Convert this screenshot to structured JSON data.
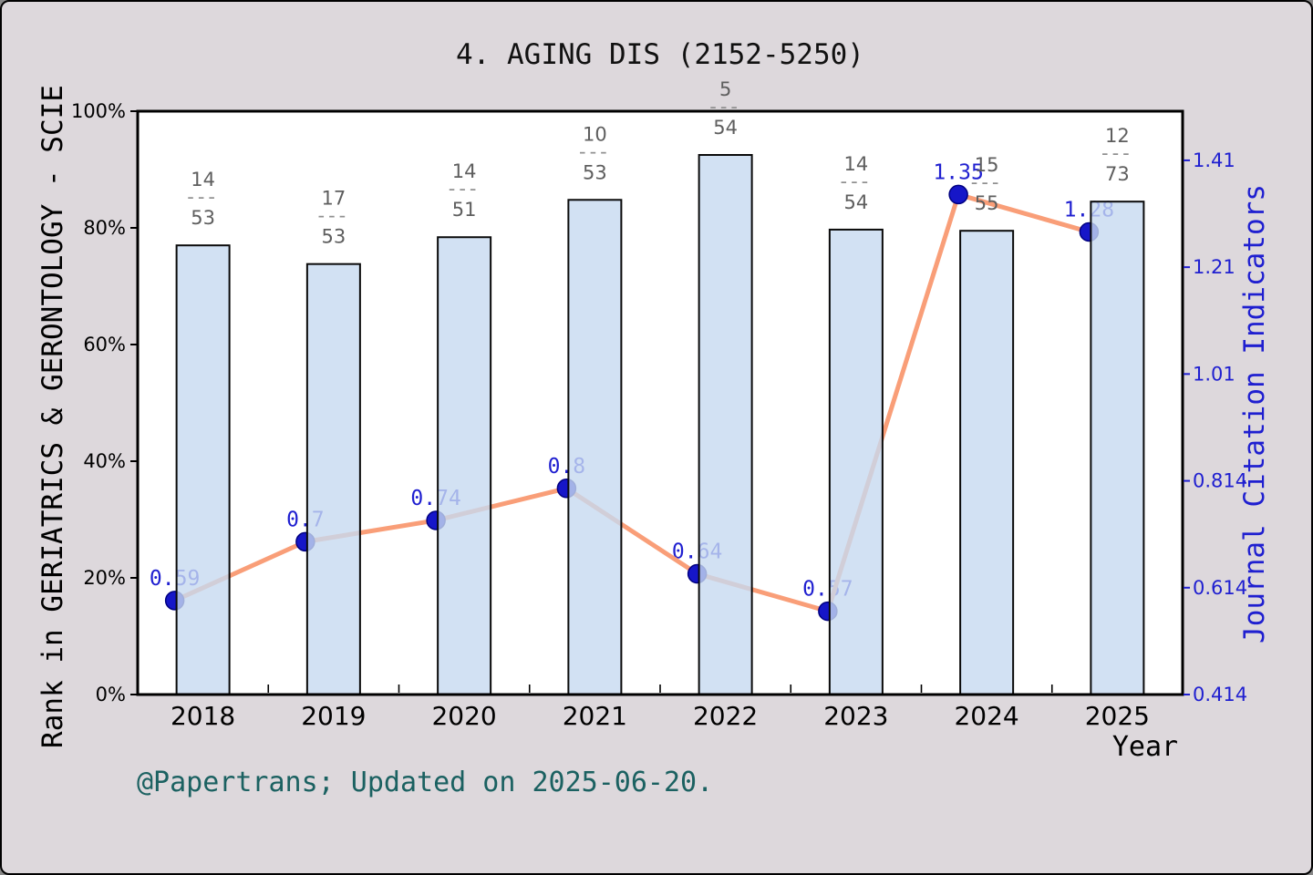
{
  "chart_data": {
    "type": "bar+line",
    "title": "4. AGING DIS (2152-5250)",
    "xlabel": "Year",
    "ylabel_left": "Rank in GERIATRICS & GERONTOLOGY - SCIE",
    "ylabel_right": "Journal Citation Indicators",
    "categories": [
      "2018",
      "2019",
      "2020",
      "2021",
      "2022",
      "2023",
      "2024",
      "2025"
    ],
    "bars": {
      "name": "rank-percentile-bars",
      "values_percent": [
        77.0,
        73.8,
        78.4,
        84.8,
        92.5,
        79.7,
        79.5,
        84.5
      ],
      "fractions": [
        {
          "num": "14",
          "den": "53"
        },
        {
          "num": "17",
          "den": "53"
        },
        {
          "num": "14",
          "den": "51"
        },
        {
          "num": "10",
          "den": "53"
        },
        {
          "num": "5",
          "den": "54"
        },
        {
          "num": "14",
          "den": "54"
        },
        {
          "num": "15",
          "den": "55"
        },
        {
          "num": "12",
          "den": "73"
        }
      ],
      "fraction_dash": "---"
    },
    "line": {
      "name": "journal-citation-indicators-line",
      "values": [
        0.59,
        0.7,
        0.74,
        0.8,
        0.64,
        0.57,
        1.35,
        1.28
      ],
      "labels": [
        "0.59",
        "0.7",
        "0.74",
        "0.8",
        "0.64",
        "0.57",
        "1.35",
        "1.28"
      ]
    },
    "left_axis": {
      "tick_labels": [
        "0%",
        "20%",
        "40%",
        "60%",
        "80%",
        "100%"
      ],
      "tick_values": [
        0,
        20,
        40,
        60,
        80,
        100
      ],
      "range": [
        0,
        100
      ],
      "grid": false
    },
    "right_axis": {
      "tick_labels": [
        "0.414",
        "0.614",
        "0.814",
        "1.01",
        "1.21",
        "1.41"
      ],
      "tick_values": [
        0.414,
        0.614,
        0.814,
        1.014,
        1.214,
        1.414
      ],
      "range": [
        0.414,
        1.506
      ],
      "grid": false
    },
    "legend_position": "none",
    "footer": "@Papertrans; Updated on 2025-06-20."
  },
  "colors": {
    "background": "#ddd8dc",
    "plot_background": "#ffffff",
    "bar_fill_rgba": "rgba(199,217,240,0.8)",
    "bar_edge": "#0a0a0a",
    "line": "#f99e78",
    "marker": "#1616c8",
    "marker_edge": "#000080",
    "value_label": "#1f1fd0",
    "right_axis": "#1f1fd0",
    "fraction_text": "#5e5e5e",
    "fraction_dash": "#8f8f8f",
    "footer_text": "#1b6161",
    "frame": "#000000",
    "title_text": "#111111"
  }
}
